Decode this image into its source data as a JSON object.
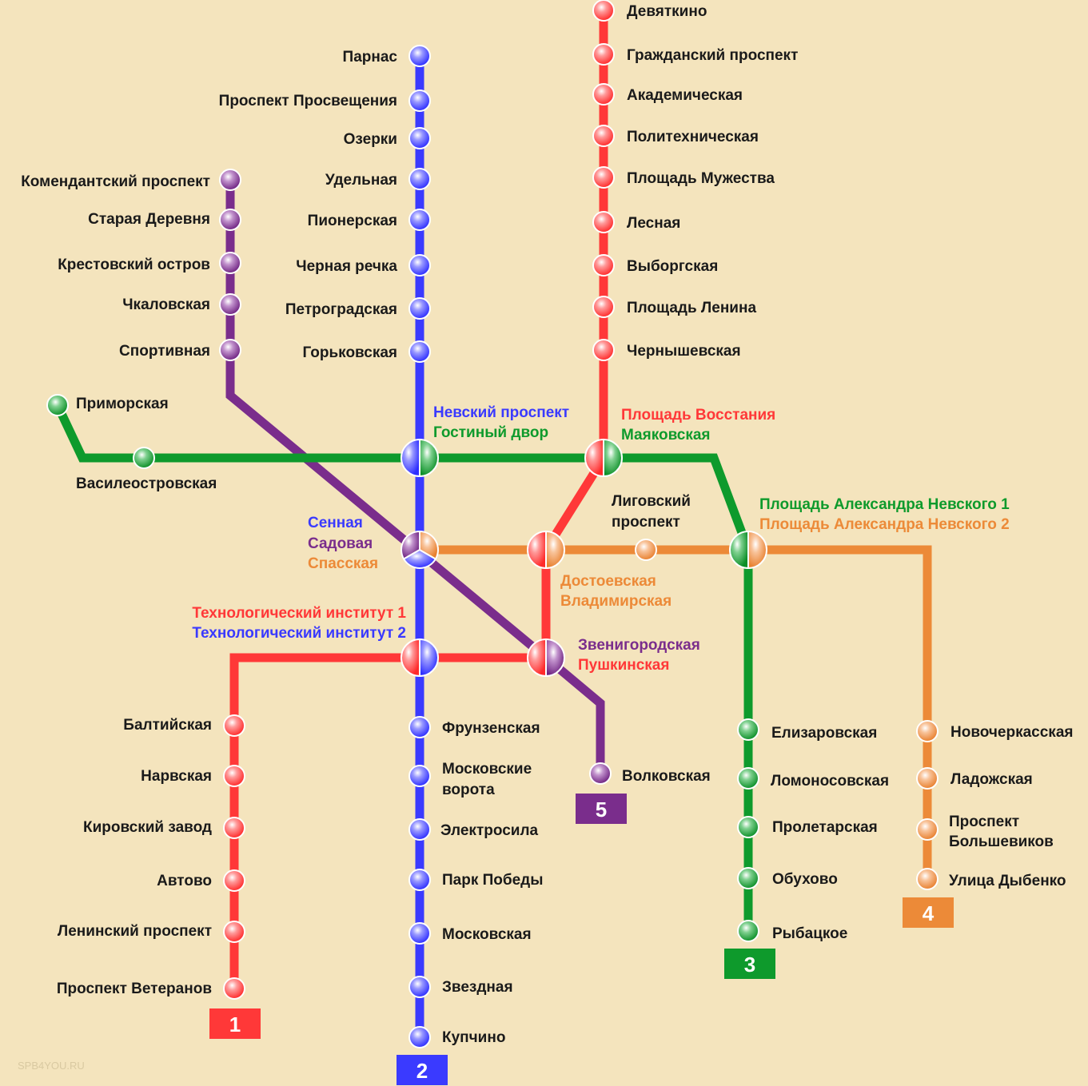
{
  "colors": {
    "background": "#f4e4bd",
    "line1_red": "#ff3838",
    "line2_blue": "#3a3aff",
    "line3_green": "#0e9a2c",
    "line4_orange": "#ec8a38",
    "line5_purple": "#7a2d8c"
  },
  "lines": {
    "l1": {
      "number": "1"
    },
    "l2": {
      "number": "2"
    },
    "l3": {
      "number": "3"
    },
    "l4": {
      "number": "4"
    },
    "l5": {
      "number": "5"
    }
  },
  "stations": {
    "s1_1": "Девяткино",
    "s1_2": "Гражданский проспект",
    "s1_3": "Академическая",
    "s1_4": "Политехническая",
    "s1_5": "Площадь Мужества",
    "s1_6": "Лесная",
    "s1_7": "Выборгская",
    "s1_8": "Площадь Ленина",
    "s1_9": "Чернышевская",
    "s1_10": "Балтийская",
    "s1_11": "Нарвская",
    "s1_12": "Кировский завод",
    "s1_13": "Автово",
    "s1_14": "Ленинский проспект",
    "s1_15": "Проспект Ветеранов",
    "s2_1": "Парнас",
    "s2_2": "Проспект Просвещения",
    "s2_3": "Озерки",
    "s2_4": "Удельная",
    "s2_5": "Пионерская",
    "s2_6": "Черная речка",
    "s2_7": "Петроградская",
    "s2_8": "Горьковская",
    "s2_9": "Фрунзенская",
    "s2_10a": "Московские",
    "s2_10b": "ворота",
    "s2_11": "Электросила",
    "s2_12": "Парк Победы",
    "s2_13": "Московская",
    "s2_14": "Звездная",
    "s2_15": "Купчино",
    "s3_1": "Приморская",
    "s3_2": "Василеостровская",
    "s3_3": "Елизаровская",
    "s3_4": "Ломоносовская",
    "s3_5": "Пролетарская",
    "s3_6": "Обухово",
    "s3_7": "Рыбацкое",
    "s4_1a": "Лиговский",
    "s4_1b": "проспект",
    "s4_2": "Новочеркасская",
    "s4_3": "Ладожская",
    "s4_4a": "Проспект",
    "s4_4b": "Большевиков",
    "s4_5": "Улица Дыбенко",
    "s5_1": "Комендантский проспект",
    "s5_2": "Старая Деревня",
    "s5_3": "Крестовский остров",
    "s5_4": "Чкаловская",
    "s5_5": "Спортивная",
    "s5_6": "Волковская"
  },
  "transfers": {
    "nevsky_a": "Невский проспект",
    "nevsky_b": "Гостиный двор",
    "vosstaniya_a": "Площадь Восстания",
    "vosstaniya_b": "Маяковская",
    "alnevsky_a": "Площадь Александра Невского 1",
    "alnevsky_b": "Площадь Александра Невского 2",
    "sennaya_a": "Сенная",
    "sennaya_b": "Садовая",
    "sennaya_c": "Спасская",
    "dost_a": "Достоевская",
    "dost_b": "Владимирская",
    "tech_a": "Технологический институт 1",
    "tech_b": "Технологический институт 2",
    "zven_a": "Звенигородская",
    "zven_b": "Пушкинская"
  },
  "watermark": "SPB4YOU.RU"
}
